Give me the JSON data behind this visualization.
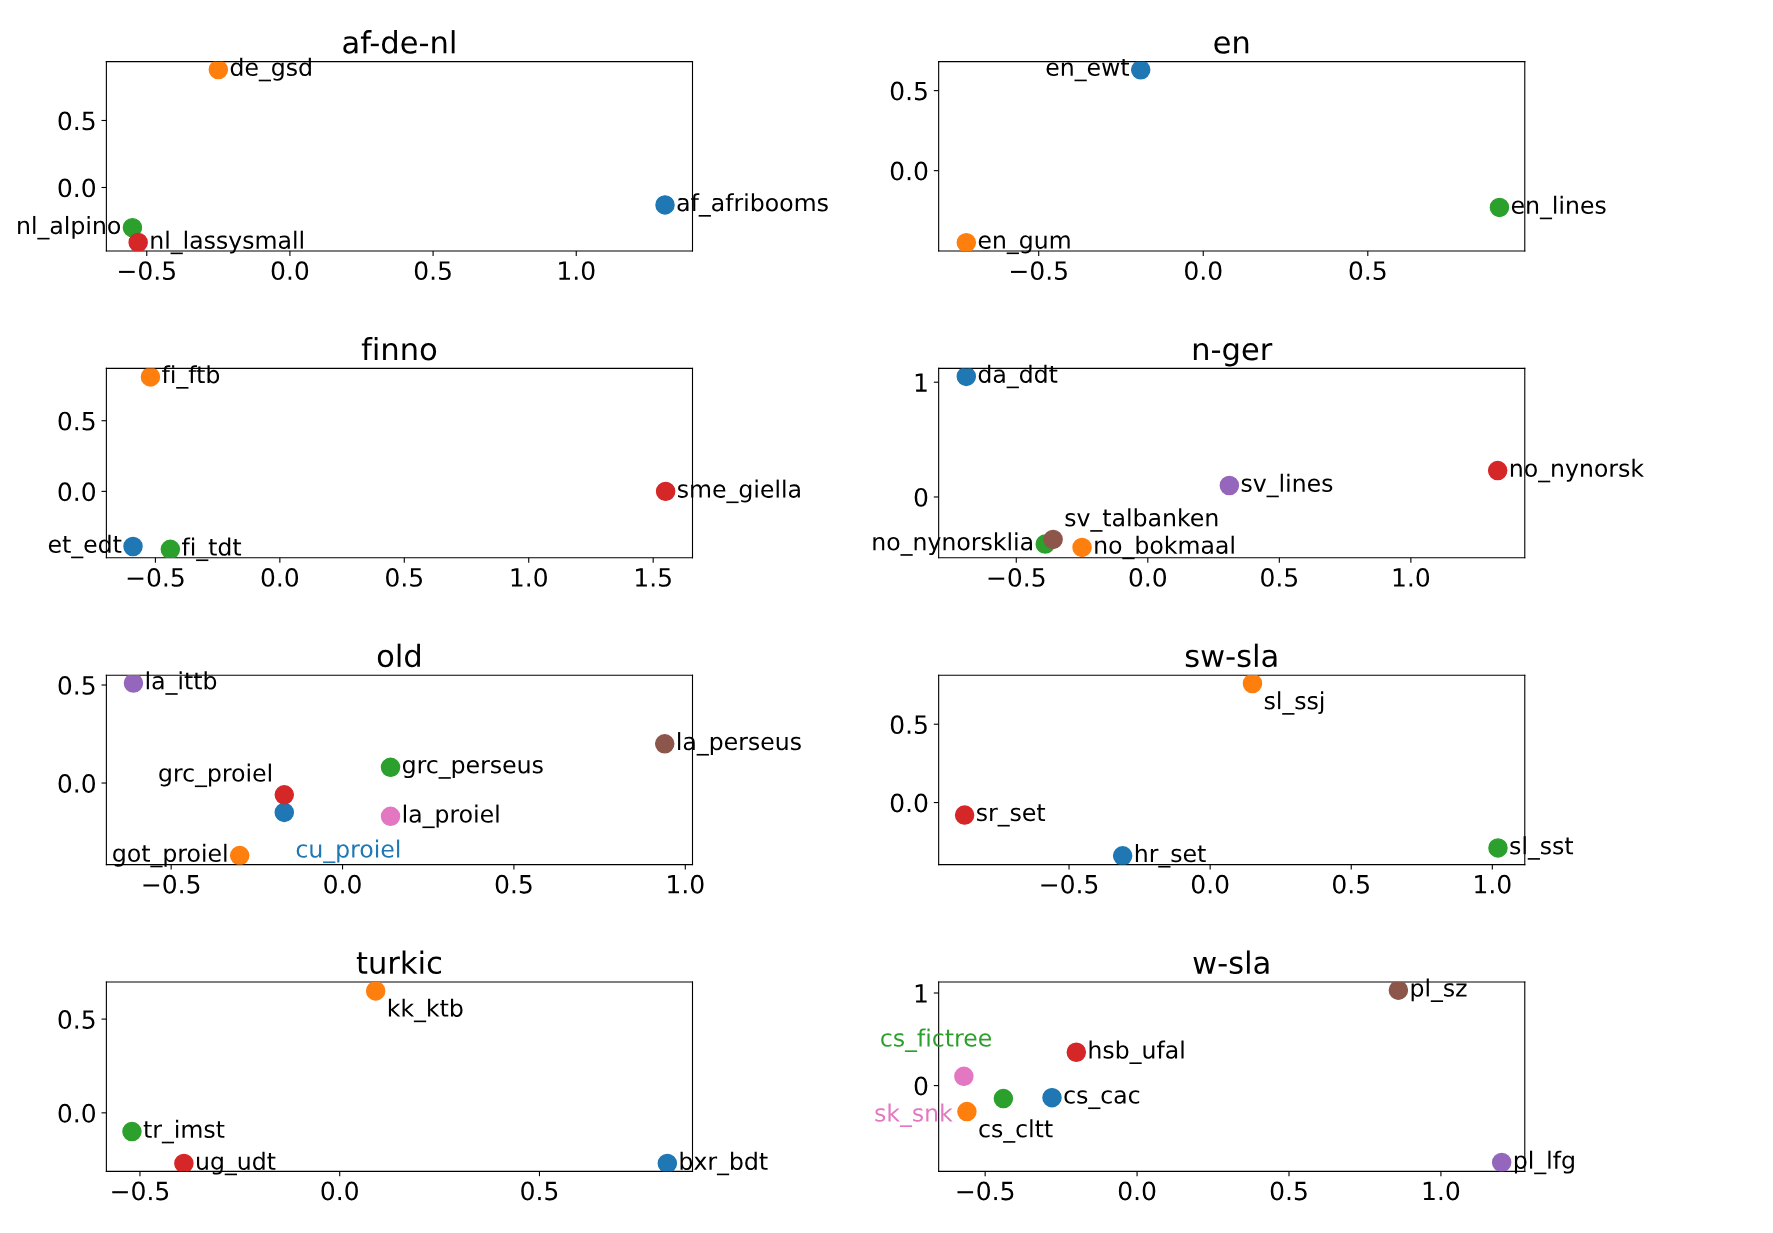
{
  "chart_data": [
    {
      "type": "scatter",
      "title": "af-de-nl",
      "legend": false,
      "grid": false,
      "marker": "circle",
      "xlim": [
        -0.641,
        1.406
      ],
      "ylim": [
        -0.474,
        0.939
      ],
      "xticks": [
        {
          "value": -0.5,
          "label": "−0.5"
        },
        {
          "value": 0,
          "label": "0.0"
        },
        {
          "value": 0.5,
          "label": "0.5"
        },
        {
          "value": 1,
          "label": "1.0"
        }
      ],
      "yticks": [
        {
          "value": 0,
          "label": "0.0"
        },
        {
          "value": 0.5,
          "label": "0.5"
        }
      ],
      "series": [
        {
          "name": "af_afribooms",
          "color": "#1f77b4",
          "x": [
            1.31
          ],
          "values": [
            -0.13
          ]
        },
        {
          "name": "de_gsd",
          "color": "#ff7f0e",
          "x": [
            -0.25
          ],
          "values": [
            0.88
          ]
        },
        {
          "name": "nl_alpino",
          "color": "#2ca02c",
          "x": [
            -0.55
          ],
          "values": [
            -0.3
          ]
        },
        {
          "name": "nl_lassysmall",
          "color": "#d62728",
          "x": [
            -0.53
          ],
          "values": [
            -0.41
          ]
        }
      ]
    },
    {
      "type": "scatter",
      "title": "en",
      "legend": false,
      "grid": false,
      "marker": "circle",
      "xlim": [
        -0.804,
        0.977
      ],
      "ylim": [
        -0.502,
        0.681
      ],
      "xticks": [
        {
          "value": -0.5,
          "label": "−0.5"
        },
        {
          "value": 0,
          "label": "0.0"
        },
        {
          "value": 0.5,
          "label": "0.5"
        }
      ],
      "yticks": [
        {
          "value": 0,
          "label": "0.0"
        },
        {
          "value": 0.5,
          "label": "0.5"
        }
      ],
      "series": [
        {
          "name": "en_ewt",
          "color": "#1f77b4",
          "x": [
            -0.19
          ],
          "values": [
            0.63
          ]
        },
        {
          "name": "en_gum",
          "color": "#ff7f0e",
          "x": [
            -0.72
          ],
          "values": [
            -0.45
          ]
        },
        {
          "name": "en_lines",
          "color": "#2ca02c",
          "x": [
            0.9
          ],
          "values": [
            -0.23
          ]
        }
      ]
    },
    {
      "type": "scatter",
      "title": "finno",
      "legend": false,
      "grid": false,
      "marker": "circle",
      "xlim": [
        -0.697,
        1.658
      ],
      "ylim": [
        -0.47,
        0.87
      ],
      "xticks": [
        {
          "value": -0.5,
          "label": "−0.5"
        },
        {
          "value": 0,
          "label": "0.0"
        },
        {
          "value": 0.5,
          "label": "0.5"
        },
        {
          "value": 1,
          "label": "1.0"
        },
        {
          "value": 1.5,
          "label": "1.5"
        }
      ],
      "yticks": [
        {
          "value": 0,
          "label": "0.0"
        },
        {
          "value": 0.5,
          "label": "0.5"
        }
      ],
      "series": [
        {
          "name": "et_edt",
          "color": "#1f77b4",
          "x": [
            -0.59
          ],
          "values": [
            -0.39
          ]
        },
        {
          "name": "fi_ftb",
          "color": "#ff7f0e",
          "x": [
            -0.52
          ],
          "values": [
            0.81
          ]
        },
        {
          "name": "fi_tdt",
          "color": "#2ca02c",
          "x": [
            -0.44
          ],
          "values": [
            -0.41
          ]
        },
        {
          "name": "sme_giella",
          "color": "#d62728",
          "x": [
            1.55
          ],
          "values": [
            0.0
          ]
        }
      ]
    },
    {
      "type": "scatter",
      "title": "n-ger",
      "legend": false,
      "grid": false,
      "marker": "circle",
      "xlim": [
        -0.795,
        1.433
      ],
      "ylim": [
        -0.53,
        1.12
      ],
      "xticks": [
        {
          "value": -0.5,
          "label": "−0.5"
        },
        {
          "value": 0,
          "label": "0.0"
        },
        {
          "value": 0.5,
          "label": "0.5"
        },
        {
          "value": 1,
          "label": "1.0"
        }
      ],
      "yticks": [
        {
          "value": 0,
          "label": "0"
        },
        {
          "value": 1,
          "label": "1"
        }
      ],
      "series": [
        {
          "name": "da_ddt",
          "color": "#1f77b4",
          "x": [
            -0.69
          ],
          "values": [
            1.05
          ]
        },
        {
          "name": "no_bokmaal",
          "color": "#ff7f0e",
          "x": [
            -0.25
          ],
          "values": [
            -0.44
          ]
        },
        {
          "name": "no_nynorsklia",
          "color": "#2ca02c",
          "x": [
            -0.39
          ],
          "values": [
            -0.41
          ]
        },
        {
          "name": "no_nynorsk",
          "color": "#d62728",
          "x": [
            1.33
          ],
          "values": [
            0.23
          ]
        },
        {
          "name": "sv_lines",
          "color": "#9467bd",
          "x": [
            0.31
          ],
          "values": [
            0.1
          ]
        },
        {
          "name": "sv_talbanken",
          "color": "#8c564b",
          "x": [
            -0.36
          ],
          "values": [
            -0.37
          ]
        }
      ]
    },
    {
      "type": "scatter",
      "title": "old",
      "legend": false,
      "grid": false,
      "marker": "circle",
      "xlim": [
        -0.689,
        1.021
      ],
      "ylim": [
        -0.416,
        0.55
      ],
      "xticks": [
        {
          "value": -0.5,
          "label": "−0.5"
        },
        {
          "value": 0,
          "label": "0.0"
        },
        {
          "value": 0.5,
          "label": "0.5"
        },
        {
          "value": 1,
          "label": "1.0"
        }
      ],
      "yticks": [
        {
          "value": 0,
          "label": "0.0"
        },
        {
          "value": 0.5,
          "label": "0.5"
        }
      ],
      "series": [
        {
          "name": "cu_proiel",
          "color": "#1f77b4",
          "x": [
            -0.17
          ],
          "values": [
            -0.15
          ]
        },
        {
          "name": "got_proiel",
          "color": "#ff7f0e",
          "x": [
            -0.3
          ],
          "values": [
            -0.37
          ]
        },
        {
          "name": "grc_perseus",
          "color": "#2ca02c",
          "x": [
            0.14
          ],
          "values": [
            0.08
          ]
        },
        {
          "name": "grc_proiel",
          "color": "#d62728",
          "x": [
            -0.17
          ],
          "values": [
            -0.06
          ]
        },
        {
          "name": "la_ittb",
          "color": "#9467bd",
          "x": [
            -0.61
          ],
          "values": [
            0.51
          ]
        },
        {
          "name": "la_perseus",
          "color": "#8c564b",
          "x": [
            0.94
          ],
          "values": [
            0.2
          ]
        },
        {
          "name": "la_proiel",
          "color": "#e377c2",
          "x": [
            0.14
          ],
          "values": [
            -0.17
          ]
        }
      ]
    },
    {
      "type": "scatter",
      "title": "sw-sla",
      "legend": false,
      "grid": false,
      "marker": "circle",
      "xlim": [
        -0.962,
        1.115
      ],
      "ylim": [
        -0.396,
        0.813
      ],
      "xticks": [
        {
          "value": -0.5,
          "label": "−0.5"
        },
        {
          "value": 0,
          "label": "0.0"
        },
        {
          "value": 0.5,
          "label": "0.5"
        },
        {
          "value": 1,
          "label": "1.0"
        }
      ],
      "yticks": [
        {
          "value": 0,
          "label": "0.0"
        },
        {
          "value": 0.5,
          "label": "0.5"
        }
      ],
      "series": [
        {
          "name": "hr_set",
          "color": "#1f77b4",
          "x": [
            -0.31
          ],
          "values": [
            -0.34
          ]
        },
        {
          "name": "sl_ssj",
          "color": "#ff7f0e",
          "x": [
            0.15
          ],
          "values": [
            0.76
          ]
        },
        {
          "name": "sl_sst",
          "color": "#2ca02c",
          "x": [
            1.02
          ],
          "values": [
            -0.29
          ]
        },
        {
          "name": "sr_set",
          "color": "#d62728",
          "x": [
            -0.87
          ],
          "values": [
            -0.08
          ]
        }
      ]
    },
    {
      "type": "scatter",
      "title": "turkic",
      "legend": false,
      "grid": false,
      "marker": "circle",
      "xlim": [
        -0.584,
        0.883
      ],
      "ylim": [
        -0.312,
        0.698
      ],
      "xticks": [
        {
          "value": -0.5,
          "label": "−0.5"
        },
        {
          "value": 0,
          "label": "0.0"
        },
        {
          "value": 0.5,
          "label": "0.5"
        }
      ],
      "yticks": [
        {
          "value": 0,
          "label": "0.0"
        },
        {
          "value": 0.5,
          "label": "0.5"
        }
      ],
      "series": [
        {
          "name": "bxr_bdt",
          "color": "#1f77b4",
          "x": [
            0.82
          ],
          "values": [
            -0.27
          ]
        },
        {
          "name": "kk_ktb",
          "color": "#ff7f0e",
          "x": [
            0.09
          ],
          "values": [
            0.65
          ]
        },
        {
          "name": "tr_imst",
          "color": "#2ca02c",
          "x": [
            -0.52
          ],
          "values": [
            -0.1
          ]
        },
        {
          "name": "ug_udt",
          "color": "#d62728",
          "x": [
            -0.39
          ],
          "values": [
            -0.27
          ]
        }
      ]
    },
    {
      "type": "scatter",
      "title": "w-sla",
      "legend": false,
      "grid": false,
      "marker": "circle",
      "xlim": [
        -0.653,
        1.276
      ],
      "ylim": [
        -0.926,
        1.119
      ],
      "xticks": [
        {
          "value": -0.5,
          "label": "−0.5"
        },
        {
          "value": 0,
          "label": "0.0"
        },
        {
          "value": 0.5,
          "label": "0.5"
        },
        {
          "value": 1,
          "label": "1.0"
        }
      ],
      "yticks": [
        {
          "value": 0,
          "label": "0"
        },
        {
          "value": 1,
          "label": "1"
        }
      ],
      "series": [
        {
          "name": "cs_cac",
          "color": "#1f77b4",
          "x": [
            -0.28
          ],
          "values": [
            -0.13
          ]
        },
        {
          "name": "cs_cltt",
          "color": "#ff7f0e",
          "x": [
            -0.56
          ],
          "values": [
            -0.28
          ]
        },
        {
          "name": "cs_fictree",
          "color": "#2ca02c",
          "x": [
            -0.44
          ],
          "values": [
            -0.14
          ]
        },
        {
          "name": "hsb_ufal",
          "color": "#d62728",
          "x": [
            -0.2
          ],
          "values": [
            0.36
          ]
        },
        {
          "name": "pl_lfg",
          "color": "#9467bd",
          "x": [
            1.2
          ],
          "values": [
            -0.83
          ]
        },
        {
          "name": "pl_sz",
          "color": "#8c564b",
          "x": [
            0.86
          ],
          "values": [
            1.03
          ]
        },
        {
          "name": "sk_snk",
          "color": "#e377c2",
          "x": [
            -0.57
          ],
          "values": [
            0.1
          ]
        }
      ]
    }
  ]
}
